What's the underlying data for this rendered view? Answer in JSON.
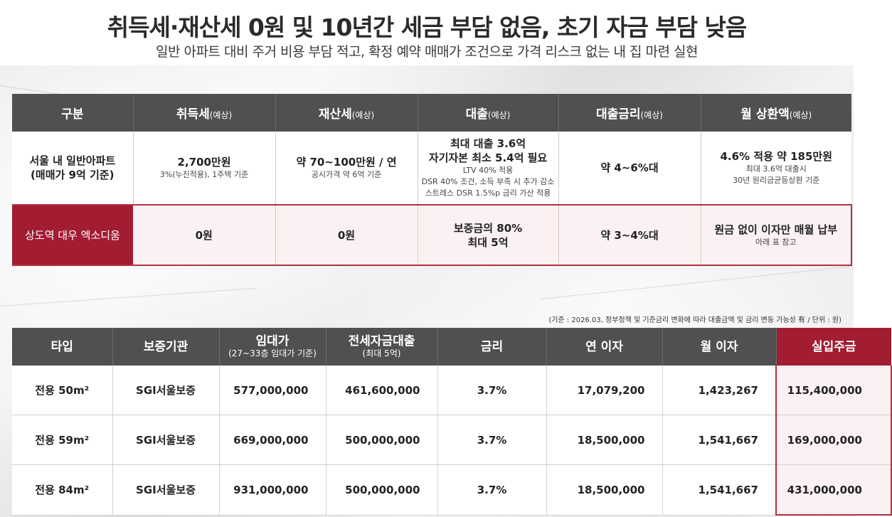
{
  "header": {
    "title": "취득세·재산세 0원 및 10년간 세금 부담 없음, 초기 자금 부담 낮음",
    "subtitle": "일반 아파트 대비 주거 비용 부담 적고, 확정 예약 매매가 조건으로 가격 리스크 없는 내 집 마련 실현"
  },
  "compare_table": {
    "headers": [
      {
        "label": "구분",
        "note": ""
      },
      {
        "label": "취득세",
        "note": "(예상)"
      },
      {
        "label": "재산세",
        "note": "(예상)"
      },
      {
        "label": "대출",
        "note": "(예상)"
      },
      {
        "label": "대출금리",
        "note": "(예상)"
      },
      {
        "label": "월 상환액",
        "note": "(예상)"
      }
    ],
    "row_general": {
      "category_line1": "서울 내 일반아파트",
      "category_line2": "(매매가 9억 기준)",
      "acq_tax_main": "2,700만원",
      "acq_tax_sub": "3%(누진적용), 1주택 기준",
      "prop_tax_main": "약 70~100만원 / 연",
      "prop_tax_sub": "공시가격 약 6억 기준",
      "loan_main1": "최대 대출 3.6억",
      "loan_main2": "자기자본 최소 5.4억 필요",
      "loan_sub1": "LTV 40% 적용",
      "loan_sub2": "DSR 40% 조건, 소득 부족 시 추가 감소",
      "loan_sub3": "스트레스 DSR 1.5%p 금리 가산 적용",
      "rate": "약 4~6%대",
      "monthly_main": "4.6% 적용 약 185만원",
      "monthly_sub1": "최대 3.6억 대출시",
      "monthly_sub2": "30년 원리금균등상환 기준"
    },
    "row_excideum": {
      "category": "상도역 대우 엑소디움",
      "acq_tax": "0원",
      "prop_tax": "0원",
      "loan_line1": "보증금의 80%",
      "loan_line2": "최대 5억",
      "rate": "약 3~4%대",
      "monthly_main": "원금 없이 이자만 매월 납부",
      "monthly_sub": "아래 표 참고"
    }
  },
  "note": "(기준 : 2026.03, 정부정책 및 기준금리 변화에 따라 대출금액 및 금리 변동 가능성 有 / 단위 : 원)",
  "rent_table": {
    "headers": [
      {
        "label": "타입",
        "note": ""
      },
      {
        "label": "보증기관",
        "note": ""
      },
      {
        "label": "임대가",
        "note": "(27~33층 임대가 기준)"
      },
      {
        "label": "전세자금대출",
        "note": "(최대 5억)"
      },
      {
        "label": "금리",
        "note": ""
      },
      {
        "label": "연 이자",
        "note": ""
      },
      {
        "label": "월 이자",
        "note": ""
      },
      {
        "label": "실입주금",
        "note": ""
      }
    ],
    "rows": [
      {
        "type": "전용 50m²",
        "guarantor": "SGI서울보증",
        "rent": "577,000,000",
        "loan": "461,600,000",
        "rate": "3.7%",
        "annual": "17,079,200",
        "monthly": "1,423,267",
        "move_in": "115,400,000"
      },
      {
        "type": "전용 59m²",
        "guarantor": "SGI서울보증",
        "rent": "669,000,000",
        "loan": "500,000,000",
        "rate": "3.7%",
        "annual": "18,500,000",
        "monthly": "1,541,667",
        "move_in": "169,000,000"
      },
      {
        "type": "전용 84m²",
        "guarantor": "SGI서울보증",
        "rent": "931,000,000",
        "loan": "500,000,000",
        "rate": "3.7%",
        "annual": "18,500,000",
        "monthly": "1,541,667",
        "move_in": "431,000,000"
      }
    ]
  },
  "colors": {
    "header_gray": "#505050",
    "accent_red": "#a21c32",
    "highlight_pink": "#fbf1f2"
  }
}
